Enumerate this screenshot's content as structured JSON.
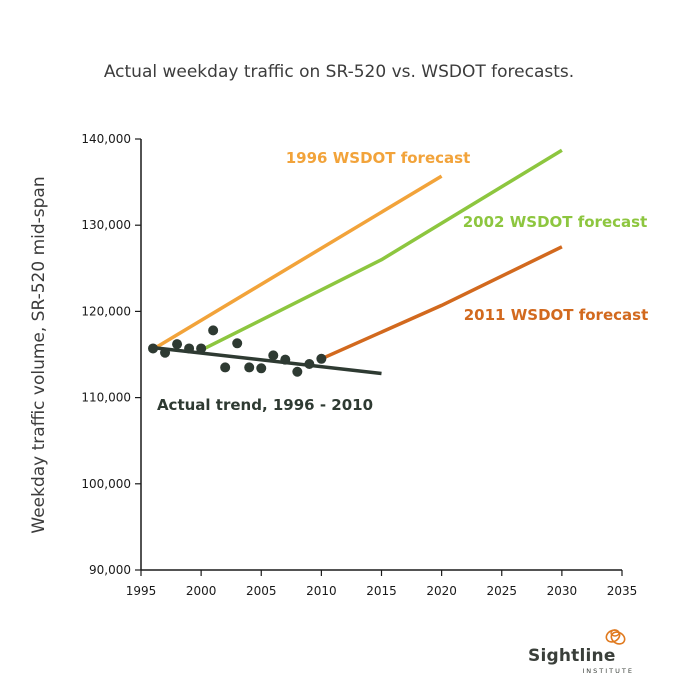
{
  "chart_data": {
    "type": "line",
    "title": "Actual weekday traffic on SR-520 vs. WSDOT forecasts.",
    "ylabel": "Weekday traffic volume, SR-520 mid-span",
    "xlabel": "",
    "xlim": [
      1995,
      2035
    ],
    "ylim": [
      90000,
      140000
    ],
    "x_ticks": [
      1995,
      2000,
      2005,
      2010,
      2015,
      2020,
      2025,
      2030,
      2035
    ],
    "x_tick_labels": [
      "1995",
      "2000",
      "2005",
      "2010",
      "2015",
      "2020",
      "2025",
      "2030",
      "2035"
    ],
    "y_ticks": [
      90000,
      100000,
      110000,
      120000,
      130000,
      140000
    ],
    "y_tick_labels": [
      "90,000",
      "100,000",
      "110,000",
      "120,000",
      "130,000",
      "140,000"
    ],
    "grid": false,
    "series": [
      {
        "name": "1996 WSDOT forecast",
        "kind": "line",
        "color": "#f2a33a",
        "points": [
          [
            1996,
            115600
          ],
          [
            2020,
            135700
          ]
        ]
      },
      {
        "name": "2002 WSDOT forecast",
        "kind": "line",
        "color": "#8dc63f",
        "points": [
          [
            2000,
            115500
          ],
          [
            2015,
            126000
          ],
          [
            2030,
            138700
          ]
        ]
      },
      {
        "name": "2011 WSDOT forecast",
        "kind": "line",
        "color": "#d2691e",
        "points": [
          [
            2010,
            114500
          ],
          [
            2020,
            120700
          ],
          [
            2030,
            127500
          ]
        ]
      },
      {
        "name": "Actual trend, 1996 - 2010",
        "kind": "line",
        "color": "#2e3a32",
        "points": [
          [
            1996,
            115800
          ],
          [
            2015,
            112800
          ]
        ]
      }
    ],
    "observations": {
      "kind": "scatter",
      "color": "#2e3a32",
      "points": [
        [
          1996,
          115700
        ],
        [
          1997,
          115200
        ],
        [
          1998,
          116200
        ],
        [
          1999,
          115700
        ],
        [
          2000,
          115700
        ],
        [
          2001,
          117800
        ],
        [
          2002,
          113500
        ],
        [
          2003,
          116300
        ],
        [
          2004,
          113500
        ],
        [
          2005,
          113400
        ],
        [
          2006,
          114900
        ],
        [
          2007,
          114400
        ],
        [
          2008,
          113000
        ],
        [
          2009,
          113900
        ],
        [
          2010,
          114500
        ]
      ]
    }
  },
  "logo": {
    "name": "Sightline",
    "sub": "INSTITUTE",
    "color": "#e07a1f"
  }
}
